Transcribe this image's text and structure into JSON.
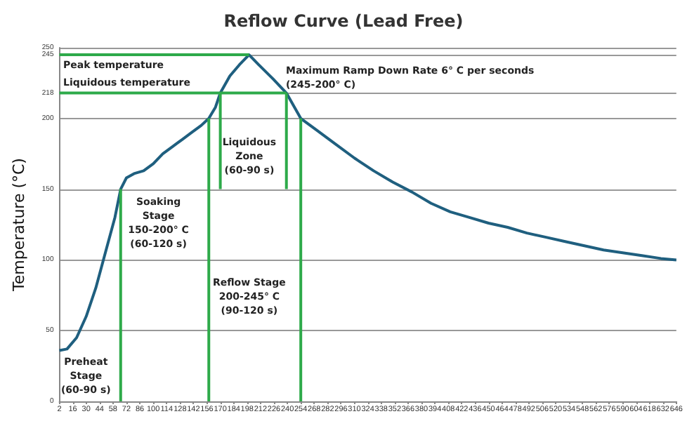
{
  "chart_data": {
    "type": "line",
    "title": "Reflow Curve (Lead Free)",
    "ylabel": "Temperature (°C)",
    "xlim": [
      2,
      646
    ],
    "xticks": [
      2,
      16,
      30,
      44,
      58,
      72,
      86,
      100,
      114,
      128,
      142,
      156,
      170,
      184,
      198,
      212,
      226,
      240,
      254,
      268,
      282,
      296,
      310,
      324,
      338,
      352,
      366,
      380,
      394,
      408,
      422,
      436,
      450,
      464,
      478,
      492,
      506,
      520,
      534,
      548,
      562,
      576,
      590,
      604,
      618,
      632,
      646
    ],
    "ylim": [
      0,
      250
    ],
    "yticks": [
      0,
      50,
      100,
      150,
      200,
      218,
      245,
      250
    ],
    "grid": "y",
    "marker": "none",
    "series": [
      {
        "color": "#1f5f7f",
        "x": [
          2,
          10,
          20,
          30,
          40,
          50,
          60,
          66,
          72,
          80,
          90,
          100,
          110,
          120,
          130,
          140,
          150,
          158,
          165,
          170,
          180,
          190,
          200,
          210,
          225,
          239,
          254,
          270,
          290,
          310,
          330,
          350,
          370,
          390,
          410,
          430,
          450,
          470,
          490,
          510,
          530,
          550,
          570,
          590,
          610,
          630,
          646
        ],
        "values": [
          36,
          37,
          45,
          60,
          80,
          105,
          130,
          150,
          158,
          161,
          163,
          168,
          175,
          180,
          185,
          190,
          195,
          200,
          208,
          218,
          230,
          238,
          245,
          238,
          228,
          218,
          200,
          192,
          182,
          172,
          163,
          155,
          148,
          140,
          134,
          130,
          126,
          123,
          119,
          116,
          113,
          110,
          107,
          105,
          103,
          101,
          100
        ]
      },
      {
        "color": "#2eaa4a",
        "x": [
          2,
          200
        ],
        "values": [
          245,
          245
        ]
      },
      {
        "color": "#2eaa4a",
        "x": [
          2,
          239
        ],
        "values": [
          218,
          218
        ]
      },
      {
        "color": "#2eaa4a",
        "x": [
          66,
          66
        ],
        "values": [
          0,
          150
        ]
      },
      {
        "color": "#2eaa4a",
        "x": [
          158,
          158
        ],
        "values": [
          0,
          200
        ]
      },
      {
        "color": "#2eaa4a",
        "x": [
          254,
          254
        ],
        "values": [
          0,
          200
        ]
      },
      {
        "color": "#2eaa4a",
        "x": [
          170,
          170
        ],
        "values": [
          150,
          218
        ]
      },
      {
        "color": "#2eaa4a",
        "x": [
          239,
          239
        ],
        "values": [
          150,
          218
        ]
      }
    ],
    "annotations": [
      "Peak temperature",
      "Liquidous temperature",
      "Maximum Ramp Down Rate 6° C per seconds\n(245-200° C)",
      "Liquidous\nZone\n(60-90 s)",
      "Soaking\nStage\n150-200° C\n(60-120 s)",
      "Reflow Stage\n200-245° C\n(90-120 s)",
      "Preheat\nStage\n(60-90 s)"
    ]
  }
}
